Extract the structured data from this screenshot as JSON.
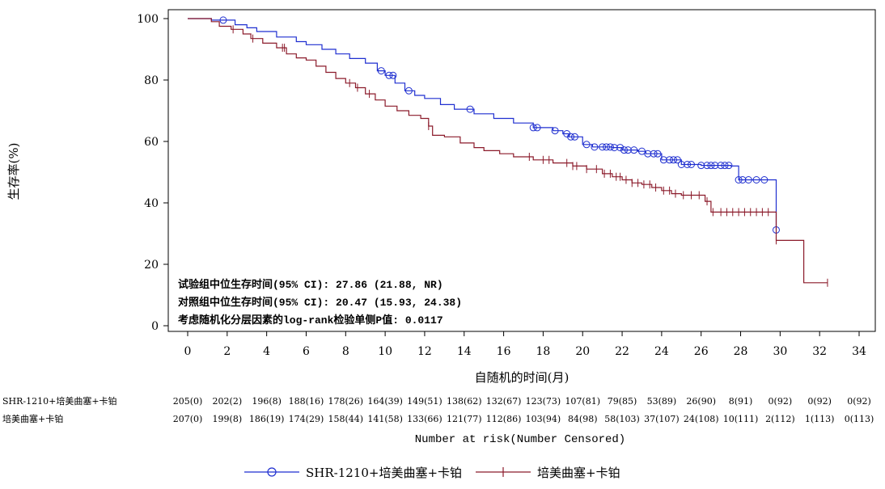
{
  "chart_data": {
    "type": "line",
    "subtype": "kaplan-meier",
    "ylabel": "生存率(%)",
    "xlabel": "自随机的时间(月)",
    "xlim": [
      0,
      34
    ],
    "ylim": [
      0,
      100
    ],
    "x_ticks": [
      0,
      2,
      4,
      6,
      8,
      10,
      12,
      14,
      16,
      18,
      20,
      22,
      24,
      26,
      28,
      30,
      32,
      34
    ],
    "y_ticks": [
      0,
      20,
      40,
      60,
      80,
      100
    ],
    "annotations": [
      "试验组中位生存时间(95% CI): 27.86 (21.88, NR)",
      "对照组中位生存时间(95% CI): 20.47 (15.93, 24.38)",
      "考虑随机化分层因素的log-rank检验单侧P值: 0.0117"
    ],
    "series": [
      {
        "name": "SHR-1210+培美曲塞+卡铂",
        "color": "#1f2fd0",
        "marker": "circle",
        "steps": [
          [
            0,
            100
          ],
          [
            1.2,
            99.5
          ],
          [
            2.4,
            98
          ],
          [
            3,
            97
          ],
          [
            3.5,
            95.8
          ],
          [
            4.5,
            94
          ],
          [
            5.5,
            92.5
          ],
          [
            6,
            91.5
          ],
          [
            6.8,
            90
          ],
          [
            7.5,
            88.5
          ],
          [
            8.2,
            87
          ],
          [
            9,
            85.5
          ],
          [
            9.6,
            83
          ],
          [
            10,
            81.5
          ],
          [
            10.5,
            79
          ],
          [
            11,
            76.5
          ],
          [
            11.5,
            75
          ],
          [
            12,
            74
          ],
          [
            12.8,
            72
          ],
          [
            13.5,
            70.5
          ],
          [
            14.5,
            69
          ],
          [
            15.5,
            67.5
          ],
          [
            16.5,
            66
          ],
          [
            17.5,
            64.5
          ],
          [
            18.5,
            63.5
          ],
          [
            19,
            62.5
          ],
          [
            19.3,
            61.5
          ],
          [
            20,
            59
          ],
          [
            20.5,
            58.2
          ],
          [
            21.5,
            58
          ],
          [
            22,
            57.2
          ],
          [
            22.8,
            56.8
          ],
          [
            23.2,
            56
          ],
          [
            24,
            54
          ],
          [
            25,
            52.5
          ],
          [
            26,
            52.2
          ],
          [
            27.5,
            52
          ],
          [
            27.9,
            47.5
          ],
          [
            29.8,
            31.2
          ]
        ],
        "censored": [
          1.8,
          9.8,
          10.2,
          10.4,
          11.2,
          14.3,
          17.5,
          17.7,
          18.6,
          19.2,
          19.4,
          19.6,
          20.2,
          20.6,
          21,
          21.2,
          21.4,
          21.6,
          21.9,
          22.1,
          22.3,
          22.6,
          23,
          23.3,
          23.6,
          23.8,
          24.1,
          24.4,
          24.6,
          24.8,
          25,
          25.3,
          25.5,
          26,
          26.3,
          26.5,
          26.7,
          27,
          27.2,
          27.4,
          27.9,
          28.1,
          28.4,
          28.8,
          29.2,
          29.8
        ],
        "at_risk": [
          "205(0)",
          "202(2)",
          "196(8)",
          "188(16)",
          "178(26)",
          "164(39)",
          "149(51)",
          "138(62)",
          "132(67)",
          "123(73)",
          "107(81)",
          "79(85)",
          "53(89)",
          "26(90)",
          "8(91)",
          "0(92)",
          "0(92)",
          "0(92)"
        ]
      },
      {
        "name": "培美曲塞+卡铂",
        "color": "#8b1a2a",
        "marker": "plus",
        "steps": [
          [
            0,
            100
          ],
          [
            1.2,
            99
          ],
          [
            1.6,
            97.5
          ],
          [
            2.2,
            96.5
          ],
          [
            2.8,
            95
          ],
          [
            3.2,
            93.5
          ],
          [
            3.8,
            92
          ],
          [
            4.5,
            90.5
          ],
          [
            5,
            88.5
          ],
          [
            5.5,
            87.2
          ],
          [
            6,
            86.5
          ],
          [
            6.5,
            84.5
          ],
          [
            7,
            82.5
          ],
          [
            7.5,
            80.5
          ],
          [
            8,
            79
          ],
          [
            8.5,
            77.5
          ],
          [
            9,
            75.5
          ],
          [
            9.5,
            73.5
          ],
          [
            10,
            71.5
          ],
          [
            10.6,
            70
          ],
          [
            11.2,
            68.5
          ],
          [
            11.8,
            67.5
          ],
          [
            12.2,
            65
          ],
          [
            12.4,
            62
          ],
          [
            13,
            61.5
          ],
          [
            13.8,
            59.5
          ],
          [
            14.5,
            58
          ],
          [
            15,
            57
          ],
          [
            15.8,
            56
          ],
          [
            16.5,
            55
          ],
          [
            17.5,
            54
          ],
          [
            18.5,
            53
          ],
          [
            19.5,
            52
          ],
          [
            20.2,
            51
          ],
          [
            21,
            49.5
          ],
          [
            21.5,
            48.5
          ],
          [
            22,
            47.5
          ],
          [
            22.5,
            46.5
          ],
          [
            23,
            46
          ],
          [
            23.5,
            45
          ],
          [
            24,
            44
          ],
          [
            24.5,
            43
          ],
          [
            25,
            42.5
          ],
          [
            26.2,
            40.5
          ],
          [
            26.5,
            37
          ],
          [
            29.8,
            27.8
          ],
          [
            31.2,
            14
          ],
          [
            32.4,
            14
          ]
        ],
        "censored": [
          2.3,
          3.3,
          4.8,
          4.9,
          8.2,
          8.6,
          9.2,
          12.2,
          17.3,
          18,
          18.3,
          19.2,
          19.5,
          19.7,
          20.2,
          20.7,
          21.1,
          21.4,
          21.7,
          21.9,
          22.2,
          22.5,
          22.8,
          23.1,
          23.4,
          23.7,
          24.1,
          24.4,
          24.7,
          25.1,
          25.5,
          25.9,
          26.3,
          26.6,
          27,
          27.3,
          27.6,
          27.9,
          28.2,
          28.5,
          28.8,
          29.1,
          29.4,
          29.8,
          32.4
        ],
        "at_risk": [
          "207(0)",
          "199(8)",
          "186(19)",
          "174(29)",
          "158(44)",
          "141(58)",
          "133(66)",
          "121(77)",
          "112(86)",
          "103(94)",
          "84(98)",
          "58(103)",
          "37(107)",
          "24(108)",
          "10(111)",
          "2(112)",
          "1(113)",
          "0(113)"
        ]
      }
    ],
    "risk_table_title": "Number at risk(Number Censored)",
    "risk_table_labels": [
      "SHR-1210+培美曲塞+卡铂",
      "培美曲塞+卡铂"
    ],
    "legend": [
      "SHR-1210+培美曲塞+卡铂",
      "培美曲塞+卡铂"
    ],
    "legend_position": "bottom-center"
  }
}
